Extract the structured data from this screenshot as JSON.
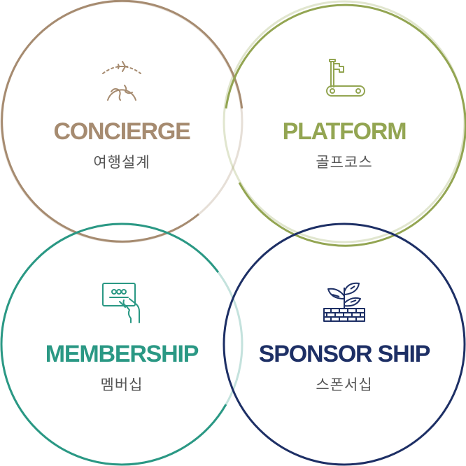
{
  "colors": {
    "concierge": "#a68b70",
    "platform": "#93a552",
    "membership": "#2a9884",
    "sponsorship": "#1d2f65",
    "subtitle": "#555555"
  },
  "circles": [
    {
      "key": "concierge",
      "title": "CONCIERGE",
      "subtitle": "여행설계",
      "icon": "globe-airplane-icon"
    },
    {
      "key": "platform",
      "title": "PLATFORM",
      "subtitle": "골프코스",
      "icon": "golf-flag-icon"
    },
    {
      "key": "membership",
      "title": "MEMBERSHIP",
      "subtitle": "멤버십",
      "icon": "membership-card-icon"
    },
    {
      "key": "sponsorship",
      "title": "SPONSOR SHIP",
      "subtitle": "스폰서십",
      "icon": "plant-bricks-icon"
    }
  ]
}
